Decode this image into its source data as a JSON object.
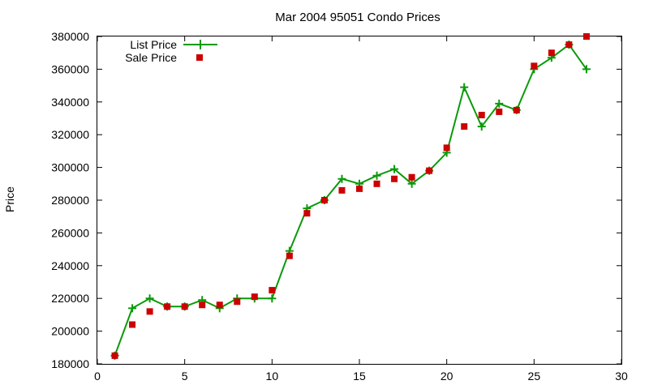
{
  "chart_data": {
    "type": "line",
    "title": "Mar 2004 95051 Condo Prices",
    "xlabel": "",
    "ylabel": "Price",
    "xlim": [
      0,
      30
    ],
    "ylim": [
      180000,
      380000
    ],
    "x_ticks": [
      0,
      5,
      10,
      15,
      20,
      25,
      30
    ],
    "y_ticks": [
      180000,
      200000,
      220000,
      240000,
      260000,
      280000,
      300000,
      320000,
      340000,
      360000,
      380000
    ],
    "grid": false,
    "legend_position": "top-left",
    "series": [
      {
        "name": "List Price",
        "style": "line+cross",
        "color": "#0a9a0a",
        "x": [
          1,
          2,
          3,
          4,
          5,
          6,
          7,
          8,
          9,
          10,
          11,
          12,
          13,
          14,
          15,
          16,
          17,
          18,
          19,
          20,
          21,
          22,
          23,
          24,
          25,
          26,
          27,
          28
        ],
        "y": [
          185000,
          214000,
          220000,
          215000,
          215000,
          219000,
          214000,
          220000,
          220000,
          220000,
          249000,
          275000,
          280000,
          293000,
          290000,
          295000,
          299000,
          290000,
          298000,
          309000,
          349000,
          325000,
          339000,
          335000,
          360000,
          367000,
          375000,
          360000
        ]
      },
      {
        "name": "Sale Price",
        "style": "square",
        "color": "#cc0000",
        "x": [
          1,
          2,
          3,
          4,
          5,
          6,
          7,
          8,
          9,
          10,
          11,
          12,
          13,
          14,
          15,
          16,
          17,
          18,
          19,
          20,
          21,
          22,
          23,
          24,
          25,
          26,
          27,
          28
        ],
        "y": [
          185000,
          204000,
          212000,
          215000,
          215000,
          216000,
          216000,
          218000,
          221000,
          225000,
          246000,
          272000,
          280000,
          286000,
          287000,
          290000,
          293000,
          294000,
          298000,
          312000,
          325000,
          332000,
          334000,
          335000,
          362000,
          370000,
          375000,
          380000
        ]
      }
    ]
  }
}
